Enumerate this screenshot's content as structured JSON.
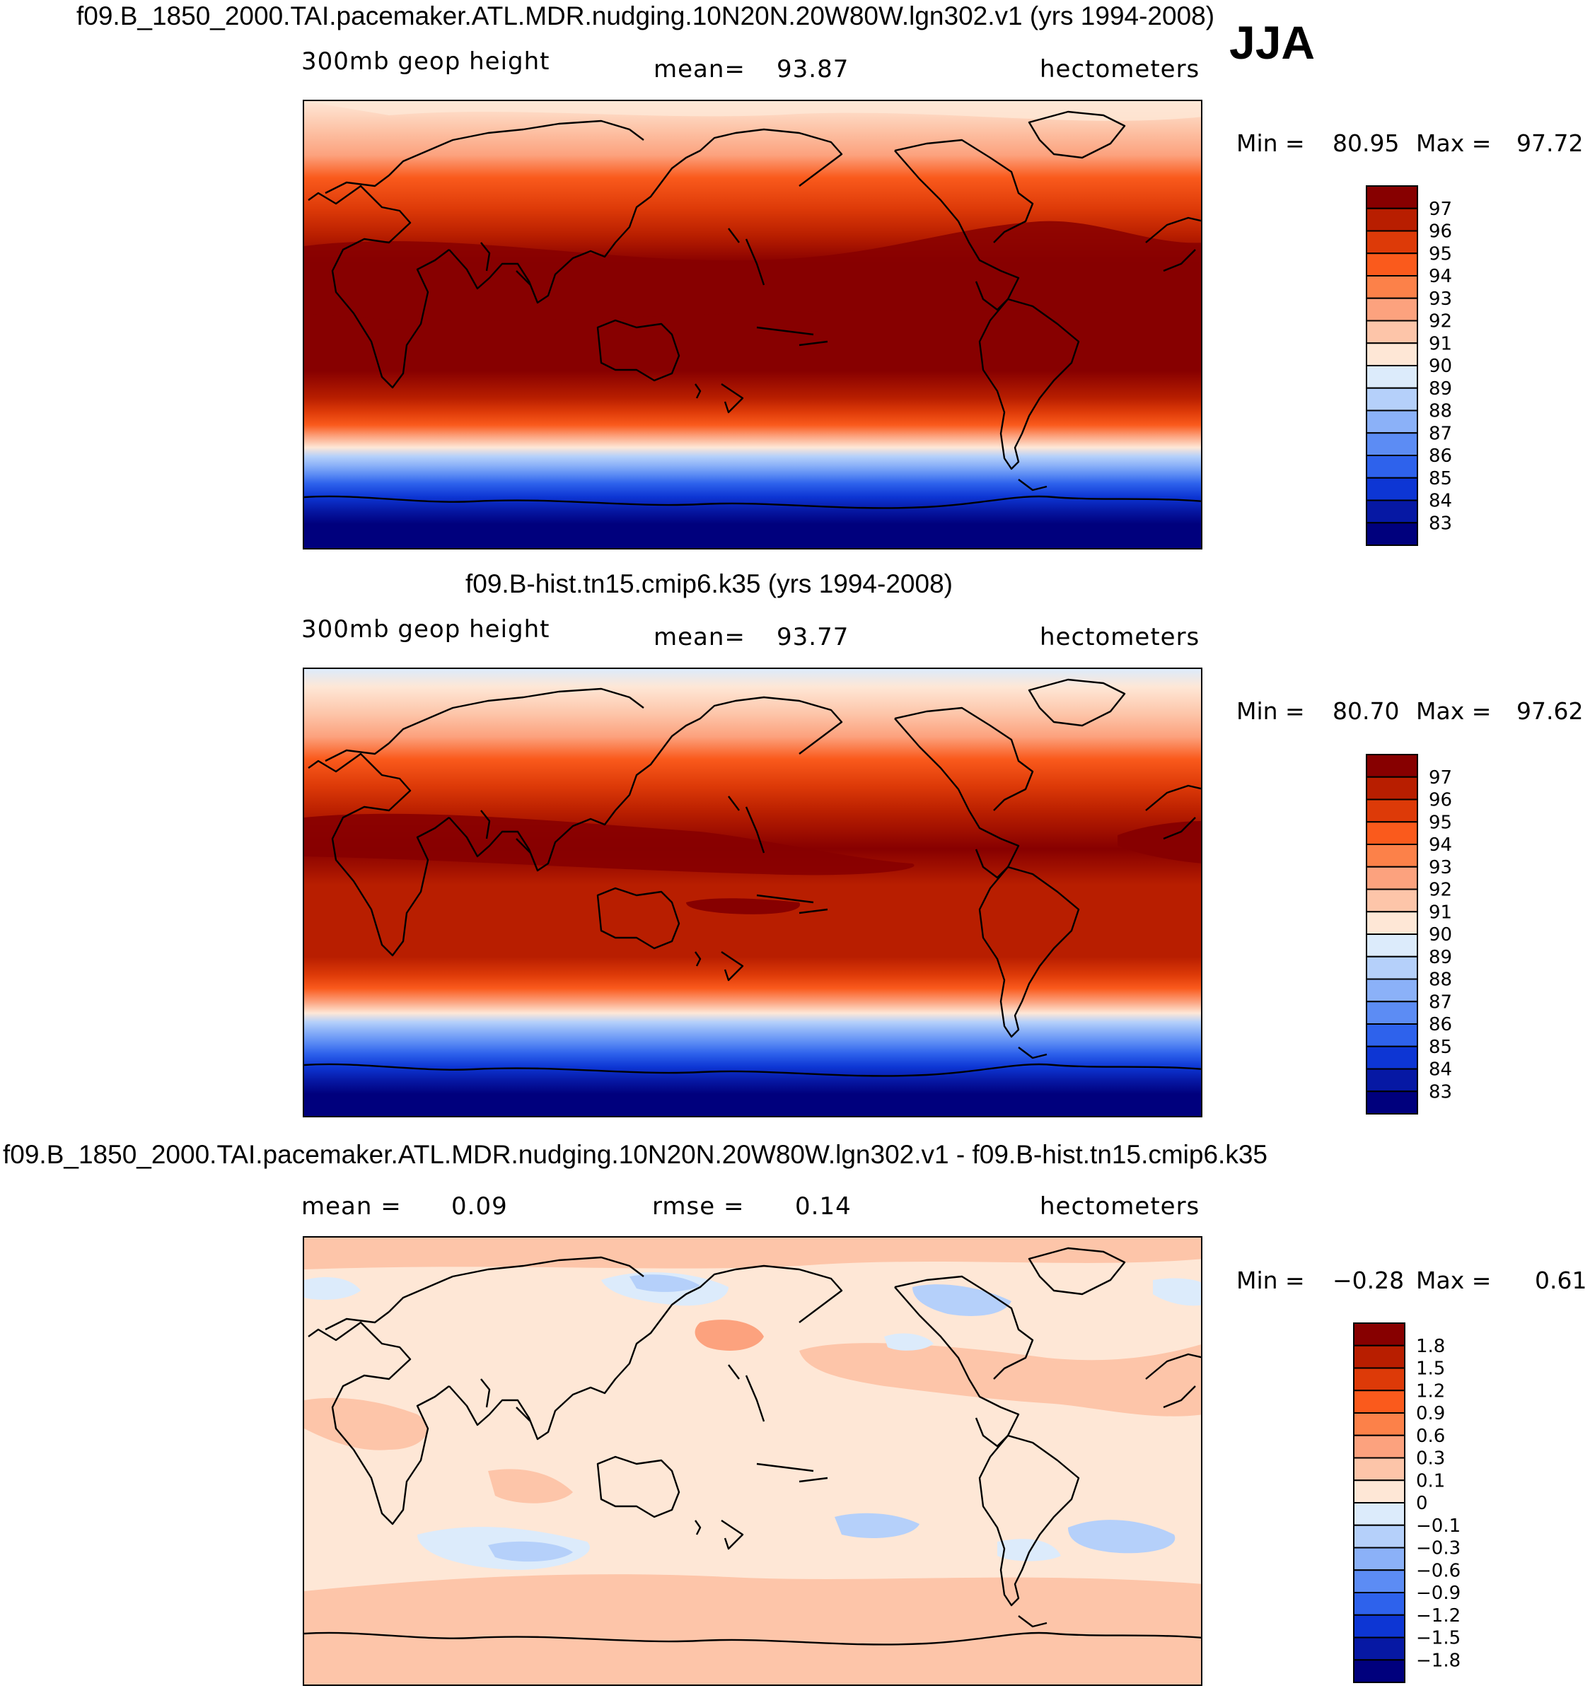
{
  "season": "JJA",
  "units": "hectometers",
  "chart_data": [
    {
      "type": "heatmap",
      "title": "f09.B_1850_2000.TAI.pacemaker.ATL.MDR.nudging.10N20N.20W80W.lgn302.v1 (yrs 1994-2008)",
      "variable": "300mb geop height",
      "stat_label": "mean=",
      "stat_value": "93.87",
      "units": "hectometers",
      "min_label": "Min =",
      "min": "80.95",
      "max_label": "Max =",
      "max": "97.72",
      "levels": [
        "97",
        "96",
        "95",
        "94",
        "93",
        "92",
        "91",
        "90",
        "89",
        "88",
        "87",
        "86",
        "85",
        "84",
        "83"
      ],
      "colors": [
        "#870000",
        "#b81e00",
        "#dd3a08",
        "#fa5a1c",
        "#fc8149",
        "#fca27e",
        "#fdc5a9",
        "#fee7d6",
        "#dcebfb",
        "#b5d0fa",
        "#8bb1f8",
        "#5c8cf4",
        "#2e62ec",
        "#0d36d4",
        "#0618a4",
        "#00007d"
      ]
    },
    {
      "type": "heatmap",
      "title": "f09.B-hist.tn15.cmip6.k35 (yrs 1994-2008)",
      "variable": "300mb geop height",
      "stat_label": "mean=",
      "stat_value": "93.77",
      "units": "hectometers",
      "min_label": "Min =",
      "min": "80.70",
      "max_label": "Max =",
      "max": "97.62",
      "levels": [
        "97",
        "96",
        "95",
        "94",
        "93",
        "92",
        "91",
        "90",
        "89",
        "88",
        "87",
        "86",
        "85",
        "84",
        "83"
      ],
      "colors": [
        "#870000",
        "#b81e00",
        "#dd3a08",
        "#fa5a1c",
        "#fc8149",
        "#fca27e",
        "#fdc5a9",
        "#fee7d6",
        "#dcebfb",
        "#b5d0fa",
        "#8bb1f8",
        "#5c8cf4",
        "#2e62ec",
        "#0d36d4",
        "#0618a4",
        "#00007d"
      ]
    },
    {
      "type": "heatmap",
      "title": "f09.B_1850_2000.TAI.pacemaker.ATL.MDR.nudging.10N20N.20W80W.lgn302.v1 - f09.B-hist.tn15.cmip6.k35",
      "variable": "",
      "stat_label": "mean =",
      "stat_value": "0.09",
      "stat2_label": "rmse =",
      "stat2_value": "0.14",
      "units": "hectometers",
      "min_label": "Min =",
      "min": "−0.28",
      "max_label": "Max =",
      "max": "0.61",
      "levels": [
        "1.8",
        "1.5",
        "1.2",
        "0.9",
        "0.6",
        "0.3",
        "0.1",
        "0",
        "−0.1",
        "−0.3",
        "−0.6",
        "−0.9",
        "−1.2",
        "−1.5",
        "−1.8"
      ],
      "colors": [
        "#870000",
        "#b81e00",
        "#dd3a08",
        "#fa5a1c",
        "#fc8149",
        "#fca27e",
        "#fdc5a9",
        "#fee7d6",
        "#dcebfb",
        "#b5d0fa",
        "#8bb1f8",
        "#5c8cf4",
        "#2e62ec",
        "#0d36d4",
        "#0618a4",
        "#00007d"
      ]
    }
  ]
}
